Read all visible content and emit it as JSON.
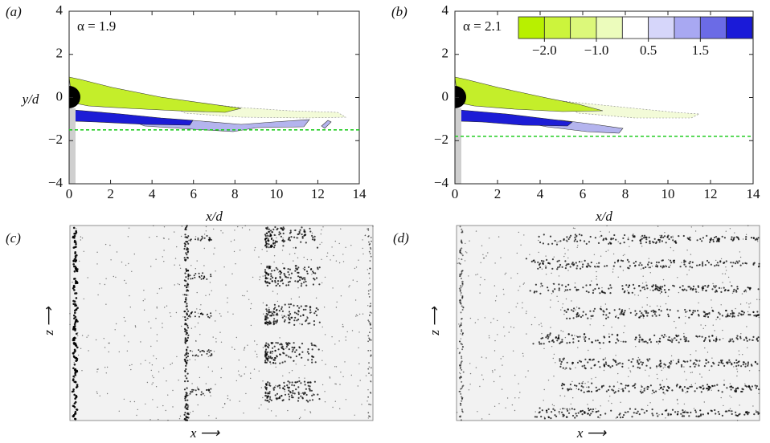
{
  "chart_data": [
    {
      "type": "contour",
      "panel_label": "(a)",
      "annotation": "α = 1.9",
      "xlabel": "x/d",
      "ylabel": "y/d",
      "xlim": [
        0,
        14
      ],
      "ylim": [
        -4,
        4
      ],
      "xticks": [
        0,
        2,
        4,
        6,
        8,
        10,
        12,
        14
      ],
      "yticks": [
        {
          "value": -4,
          "label": "−4"
        },
        {
          "value": -2,
          "label": "−2"
        },
        0,
        2,
        4
      ],
      "reference_line": -1.5,
      "reference_color": "#22cc22"
    },
    {
      "type": "contour",
      "panel_label": "(b)",
      "annotation": "α = 2.1",
      "xlabel": "x/d",
      "xlim": [
        0,
        14
      ],
      "ylim": [
        -4,
        4
      ],
      "xticks": [
        0,
        2,
        4,
        6,
        8,
        10,
        12,
        14
      ],
      "yticks": [
        {
          "value": -4,
          "label": "−4"
        },
        {
          "value": -2,
          "label": "−2"
        },
        0,
        2,
        4
      ],
      "reference_line": -1.8,
      "reference_color": "#22cc22",
      "colorbar": {
        "levels": [
          -2.5,
          -2,
          -1.5,
          -1,
          -0.5,
          0.5,
          1,
          1.5,
          2,
          2.5
        ],
        "colors": [
          "#b8f000",
          "#ccf43c",
          "#dcf87a",
          "#ecfcbc",
          "#ffffff",
          "#d6d6fa",
          "#a8a8f2",
          "#6b6be6",
          "#1a1ad8"
        ],
        "ticks": [
          {
            "value": -2,
            "label": "−2.0"
          },
          {
            "value": -1,
            "label": "−1.0"
          },
          0.5,
          1.5
        ]
      }
    }
  ],
  "photos": [
    {
      "panel_label": "(c)",
      "xlabel": "x ⟶",
      "zlabel": "z ⟶"
    },
    {
      "panel_label": "(d)",
      "xlabel": "x ⟶",
      "zlabel": "z ⟶"
    }
  ]
}
